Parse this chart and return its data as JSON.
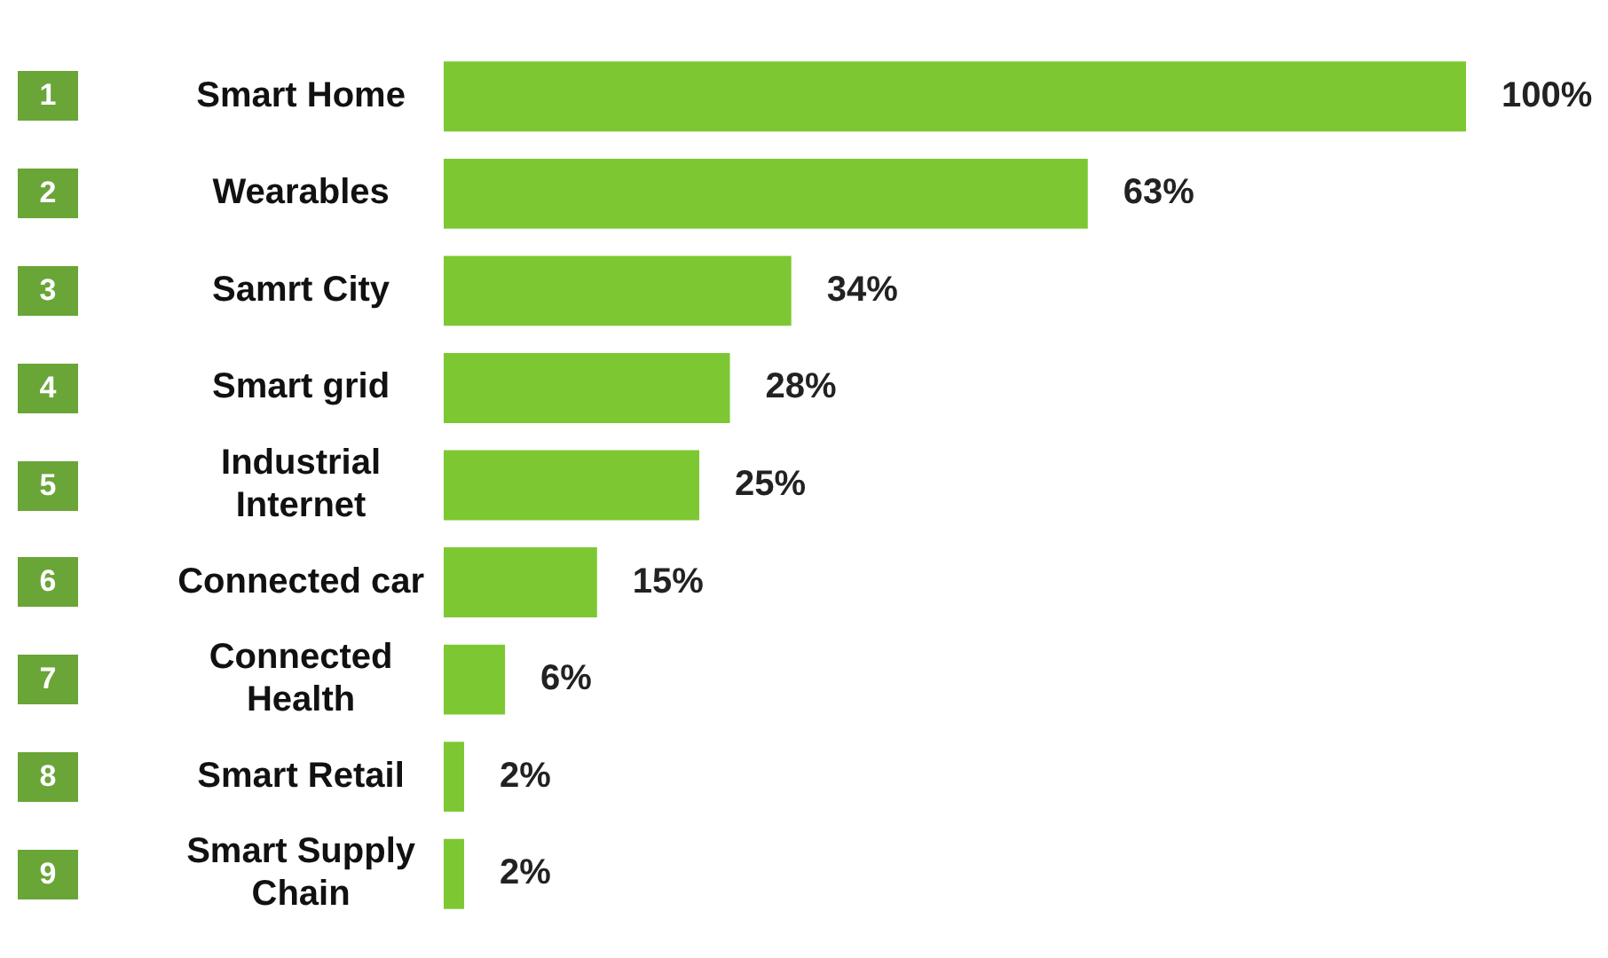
{
  "chart_data": {
    "type": "bar",
    "orientation": "horizontal",
    "categories": [
      "Smart Home",
      "Wearables",
      "Samrt City",
      "Smart grid",
      "Industrial Internet",
      "Connected car",
      "Connected Health",
      "Smart Retail",
      "Smart Supply Chain"
    ],
    "values": [
      100,
      63,
      34,
      28,
      25,
      15,
      6,
      2,
      2
    ],
    "value_labels": [
      "100%",
      "63%",
      "34%",
      "28%",
      "25%",
      "15%",
      "6%",
      "2%",
      "2%"
    ],
    "color": "#7dc832",
    "xlim": [
      0,
      100
    ],
    "tick_labels": "y",
    "legend": false,
    "annotations": [
      "1",
      "2",
      "3",
      "4",
      "5",
      "6",
      "7",
      "8",
      "9"
    ]
  }
}
